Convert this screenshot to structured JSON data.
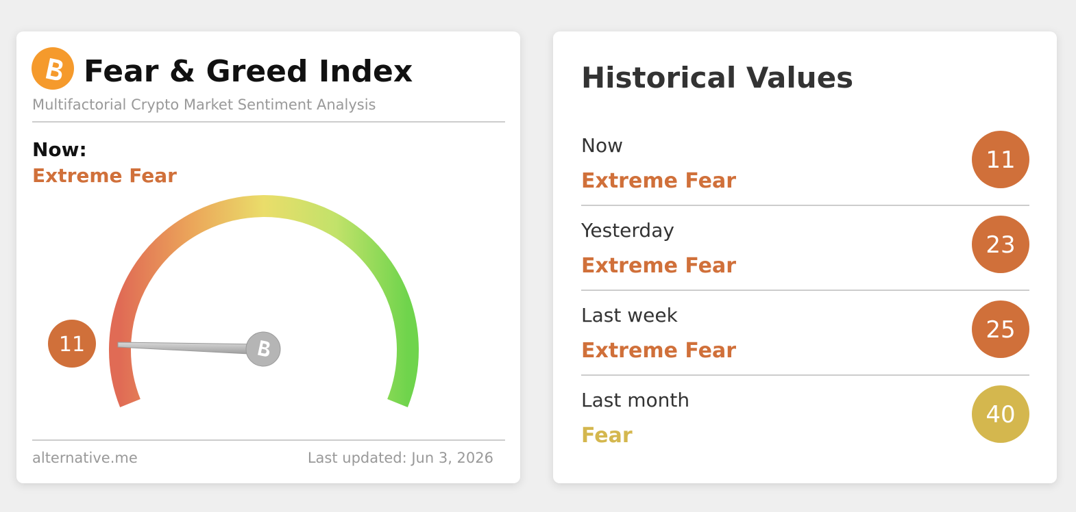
{
  "gauge": {
    "title": "Fear & Greed Index",
    "subtitle": "Multifactorial Crypto Market Sentiment Analysis",
    "now_label": "Now:",
    "now_status": "Extreme Fear",
    "value": 11,
    "color": "#d0703a",
    "source": "alternative.me",
    "updated": "Last updated: Jun 3, 2026"
  },
  "historical": {
    "title": "Historical Values",
    "rows": [
      {
        "period": "Now",
        "status": "Extreme Fear",
        "value": 11,
        "color": "#d0703a"
      },
      {
        "period": "Yesterday",
        "status": "Extreme Fear",
        "value": 23,
        "color": "#d0703a"
      },
      {
        "period": "Last week",
        "status": "Extreme Fear",
        "value": 25,
        "color": "#d0703a"
      },
      {
        "period": "Last month",
        "status": "Fear",
        "value": 40,
        "color": "#d4b74e"
      }
    ]
  }
}
